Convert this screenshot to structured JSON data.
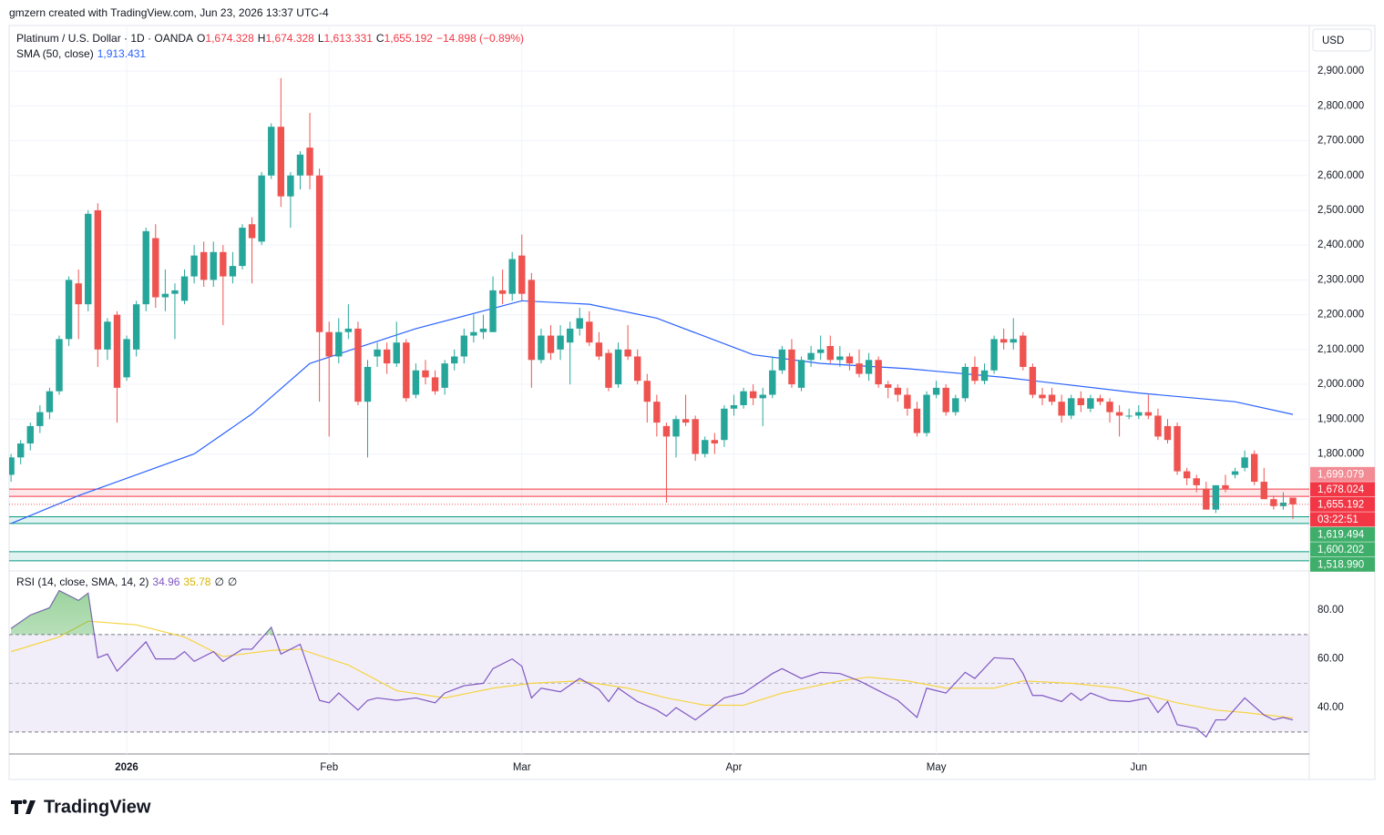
{
  "header": {
    "attribution": "gmzern created with TradingView.com, Jun 23, 2026 13:37 UTC-4",
    "brand": "TradingView"
  },
  "chart_data": {
    "type": "candlestick",
    "title": "Platinum / U.S. Dollar · 1D · OANDA",
    "legend_values": [
      {
        "key": "O",
        "value": "1,674.328"
      },
      {
        "key": "H",
        "value": "1,674.328"
      },
      {
        "key": "L",
        "value": "1,613.331"
      },
      {
        "key": "C",
        "value": "1,655.192"
      }
    ],
    "change": "−14.898 (−0.89%)",
    "currency": "USD",
    "up_color": "#26a69a",
    "down_color": "#ef5350",
    "xlim": [
      -0.2,
      134.7
    ],
    "xticks": [
      {
        "value": 12,
        "label": "2026"
      },
      {
        "value": 33,
        "label": "Feb"
      },
      {
        "value": 53,
        "label": "Mar"
      },
      {
        "value": 75,
        "label": "Apr"
      },
      {
        "value": 96,
        "label": "May"
      },
      {
        "value": 117,
        "label": "Jun"
      }
    ],
    "ylim": [
      1469,
      3031
    ],
    "yticks": [
      {
        "value": 2900,
        "label": "2,900.000"
      },
      {
        "value": 2800,
        "label": "2,800.000"
      },
      {
        "value": 2700,
        "label": "2,700.000"
      },
      {
        "value": 2600,
        "label": "2,600.000"
      },
      {
        "value": 2500,
        "label": "2,500.000"
      },
      {
        "value": 2400,
        "label": "2,400.000"
      },
      {
        "value": 2300,
        "label": "2,300.000"
      },
      {
        "value": 2200,
        "label": "2,200.000"
      },
      {
        "value": 2100,
        "label": "2,100.000"
      },
      {
        "value": 2000,
        "label": "2,000.000"
      },
      {
        "value": 1900,
        "label": "1,900.000"
      },
      {
        "value": 1800,
        "label": "1,800.000"
      }
    ],
    "grid": true,
    "open": [
      1740,
      1790,
      1830,
      1880,
      1920,
      1980,
      2130,
      2290,
      2230,
      2500,
      2100,
      2200,
      2020,
      2100,
      2230,
      2420,
      2250,
      2260,
      2240,
      2310,
      2380,
      2300,
      2380,
      2310,
      2340,
      2460,
      2410,
      2600,
      2740,
      2540,
      2600,
      2680,
      2600,
      2150,
      2080,
      2150,
      2160,
      1950,
      2080,
      2100,
      2060,
      2120,
      1970,
      2040,
      2020,
      1990,
      2060,
      2080,
      2140,
      2150,
      2150,
      2270,
      2260,
      2370,
      2300,
      2070,
      2140,
      2100,
      2120,
      2160,
      2180,
      2120,
      2090,
      2000,
      2100,
      2080,
      2010,
      1950,
      1880,
      1850,
      1900,
      1900,
      1800,
      1840,
      1840,
      1930,
      1940,
      1980,
      1960,
      1970,
      2040,
      2100,
      1990,
      2070,
      2090,
      2110,
      2070,
      2080,
      2060,
      2030,
      2070,
      2000,
      1990,
      1970,
      1930,
      1860,
      1970,
      1990,
      1920,
      1960,
      2050,
      2010,
      2040,
      2130,
      2120,
      2140,
      2050,
      1970,
      1970,
      1950,
      1910,
      1960,
      1930,
      1960,
      1950,
      1920,
      1910,
      1910,
      1920,
      1910,
      1880,
      1880,
      1750,
      1730,
      1700,
      1640,
      1710,
      1740,
      1760,
      1800,
      1720,
      1670,
      1650,
      1674.328
    ],
    "high": [
      1800,
      1840,
      1890,
      1940,
      1990,
      2140,
      2310,
      2330,
      2500,
      2520,
      2190,
      2210,
      2140,
      2240,
      2450,
      2460,
      2330,
      2290,
      2330,
      2400,
      2410,
      2410,
      2400,
      2380,
      2460,
      2480,
      2610,
      2750,
      2880,
      2610,
      2670,
      2780,
      2620,
      2180,
      2190,
      2230,
      2180,
      2070,
      2120,
      2120,
      2180,
      2130,
      2060,
      2070,
      2040,
      2070,
      2100,
      2160,
      2200,
      2200,
      2310,
      2330,
      2380,
      2430,
      2320,
      2160,
      2170,
      2170,
      2180,
      2220,
      2210,
      2150,
      2100,
      2120,
      2170,
      2100,
      2030,
      1970,
      1890,
      1910,
      1970,
      1910,
      1850,
      1860,
      1940,
      1970,
      1990,
      2000,
      1990,
      2080,
      2110,
      2130,
      2080,
      2110,
      2140,
      2140,
      2110,
      2090,
      2100,
      2090,
      2080,
      2010,
      2000,
      1990,
      1950,
      1980,
      2010,
      2000,
      1970,
      2060,
      2080,
      2060,
      2140,
      2160,
      2190,
      2150,
      2060,
      1990,
      1990,
      1970,
      1970,
      1980,
      1970,
      1970,
      1960,
      1940,
      1930,
      1940,
      1970,
      1930,
      1900,
      1890,
      1760,
      1740,
      1720,
      1710,
      1740,
      1760,
      1810,
      1810,
      1760,
      1680,
      1690,
      1674.328
    ],
    "low": [
      1720,
      1770,
      1810,
      1860,
      1900,
      1970,
      2110,
      2130,
      2210,
      2050,
      2070,
      1890,
      2010,
      2080,
      2210,
      2220,
      2210,
      2130,
      2230,
      2290,
      2280,
      2280,
      2170,
      2290,
      2330,
      2290,
      2400,
      2590,
      2510,
      2450,
      2560,
      2560,
      1950,
      1850,
      2060,
      2130,
      1940,
      1790,
      2050,
      2030,
      2050,
      1950,
      1960,
      2000,
      1970,
      1970,
      2040,
      2060,
      2120,
      2130,
      2150,
      2230,
      2240,
      2240,
      1990,
      2060,
      2070,
      2070,
      2000,
      2140,
      2110,
      2070,
      1980,
      1990,
      2070,
      2000,
      1890,
      1850,
      1660,
      1790,
      1880,
      1780,
      1790,
      1800,
      1820,
      1910,
      1930,
      1940,
      1880,
      1960,
      2030,
      1990,
      1980,
      2050,
      2070,
      2060,
      2050,
      2040,
      2020,
      2010,
      1990,
      1960,
      1950,
      1910,
      1850,
      1850,
      1960,
      1910,
      1910,
      1950,
      2000,
      2000,
      2030,
      2100,
      2100,
      2040,
      1960,
      1940,
      1940,
      1890,
      1900,
      1920,
      1920,
      1940,
      1890,
      1850,
      1900,
      1900,
      1900,
      1840,
      1830,
      1740,
      1710,
      1690,
      1640,
      1630,
      1690,
      1730,
      1750,
      1710,
      1670,
      1640,
      1640,
      1613.331
    ],
    "close": [
      1790,
      1830,
      1880,
      1920,
      1980,
      2130,
      2300,
      2230,
      2490,
      2100,
      2180,
      1990,
      2130,
      2230,
      2440,
      2250,
      2260,
      2270,
      2310,
      2370,
      2300,
      2380,
      2310,
      2340,
      2450,
      2420,
      2600,
      2740,
      2540,
      2600,
      2660,
      2600,
      2150,
      2080,
      2150,
      2160,
      1950,
      2050,
      2100,
      2060,
      2120,
      1960,
      2040,
      2020,
      1980,
      2060,
      2080,
      2140,
      2150,
      2160,
      2270,
      2260,
      2360,
      2260,
      2070,
      2140,
      2090,
      2140,
      2160,
      2190,
      2120,
      2080,
      1990,
      2100,
      2080,
      2010,
      1950,
      1890,
      1850,
      1900,
      1890,
      1800,
      1840,
      1830,
      1930,
      1940,
      1980,
      1960,
      1970,
      2040,
      2100,
      2000,
      2070,
      2090,
      2100,
      2070,
      2080,
      2060,
      2030,
      2070,
      2000,
      1990,
      1970,
      1930,
      1860,
      1970,
      1990,
      1920,
      1960,
      2050,
      2010,
      2040,
      2130,
      2120,
      2130,
      2050,
      1970,
      1960,
      1950,
      1910,
      1960,
      1940,
      1960,
      1950,
      1920,
      1910,
      1910,
      1920,
      1910,
      1850,
      1840,
      1750,
      1730,
      1710,
      1640,
      1710,
      1700,
      1750,
      1790,
      1720,
      1670,
      1650,
      1660,
      1655.192
    ],
    "last_price_label": "1,655.192",
    "countdown": "03:22:51",
    "sma": {
      "name": "SMA (50, close)",
      "value_label": "1,913.431",
      "color": "#2962ff",
      "x": [
        0,
        7,
        19,
        25,
        31,
        42,
        53,
        60,
        67,
        77,
        84,
        93,
        103,
        117,
        127,
        133
      ],
      "values": [
        1600,
        1680,
        1800,
        1915,
        2060,
        2160,
        2240,
        2230,
        2190,
        2085,
        2060,
        2045,
        2020,
        1975,
        1950,
        1913.431
      ]
    },
    "zones": [
      {
        "color": "#f23645",
        "edges": [
          {
            "value": 1699.079,
            "label": "1,699.079",
            "label_color": "#f28b93"
          },
          {
            "value": 1678.024,
            "label": "1,678.024",
            "label_color": "#f23645"
          }
        ]
      },
      {
        "color": "#089981",
        "edges": [
          {
            "value": 1619.494,
            "label": "1,619.494",
            "label_color": "#3fae6a"
          },
          {
            "value": 1600.202,
            "label": "1,600.202",
            "label_color": "#3fae6a"
          }
        ]
      },
      {
        "color": "#089981",
        "edges": [
          {
            "value": 1518.99,
            "label": "1,518.990",
            "label_color": "#3fae6a"
          },
          {
            "value": 1493
          }
        ]
      }
    ],
    "rsi": {
      "name": "RSI (14, close, SMA, 14, 2)",
      "ylim": [
        21,
        95
      ],
      "yticks": [
        {
          "value": 80,
          "label": "80.00"
        },
        {
          "value": 60,
          "label": "60.00"
        },
        {
          "value": 40,
          "label": "40.00"
        }
      ],
      "band": [
        70,
        30
      ],
      "midline": 50,
      "extra_labels": [
        "∅",
        "∅"
      ],
      "series": [
        {
          "color": "#7e57c2",
          "value_label": "34.96",
          "x": [
            0,
            2,
            4,
            5,
            7,
            8,
            9,
            10,
            11,
            12,
            14,
            15,
            17,
            18,
            19,
            21,
            22,
            24,
            25,
            27,
            28,
            30,
            32,
            33,
            34,
            36,
            37,
            38,
            40,
            42,
            44,
            45,
            47,
            49,
            50,
            52,
            53,
            54,
            55,
            57,
            59,
            61,
            62,
            63,
            65,
            67,
            68,
            69,
            71,
            72,
            74,
            76,
            79,
            80,
            82,
            84,
            86,
            88,
            90,
            92,
            94,
            95,
            97,
            99,
            100,
            102,
            104,
            105,
            106,
            107,
            109,
            110,
            111,
            112,
            114,
            116,
            118,
            119,
            120,
            121,
            123,
            124,
            125,
            126,
            128,
            130,
            131,
            132,
            133
          ],
          "values": [
            72.5,
            78,
            81,
            88,
            84,
            87,
            60.5,
            62,
            55,
            59,
            67,
            60,
            60,
            63,
            59,
            63,
            59,
            64,
            64,
            73,
            62,
            66,
            43,
            42,
            46,
            39,
            43,
            44,
            43,
            44,
            42,
            46,
            49,
            50,
            56,
            60,
            57,
            44,
            48,
            46.5,
            52,
            47.5,
            42.5,
            48,
            42.5,
            39,
            36.5,
            40,
            35,
            38,
            44,
            46,
            54,
            56,
            52,
            54.5,
            54,
            51,
            47,
            43,
            36,
            48,
            46,
            54.5,
            52,
            60.5,
            60,
            54,
            45,
            45,
            42.5,
            46,
            43,
            46,
            43,
            42.5,
            44,
            38,
            42.5,
            33,
            31.5,
            28,
            35,
            35,
            44,
            37,
            35,
            36,
            34.96
          ]
        },
        {
          "color": "#f5d442",
          "value_label": "35.78",
          "x": [
            0,
            5,
            8,
            13,
            18,
            22,
            27,
            30,
            35,
            40,
            45,
            50,
            54,
            59,
            64,
            68,
            72,
            76,
            80,
            86,
            89,
            93,
            97,
            102,
            105,
            110,
            115,
            121,
            125,
            128,
            133
          ],
          "values": [
            63,
            69,
            75.5,
            74,
            69,
            61,
            63.5,
            64,
            57.5,
            47,
            44,
            48,
            50,
            51,
            48,
            44,
            41,
            41,
            46,
            51,
            52.5,
            51,
            48,
            48,
            51,
            50,
            48,
            42,
            39,
            38,
            35.78
          ]
        }
      ]
    }
  }
}
